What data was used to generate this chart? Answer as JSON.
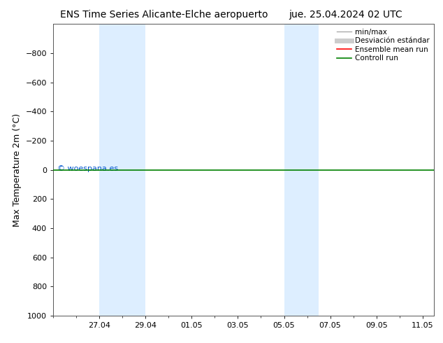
{
  "title_left": "ENS Time Series Alicante-Elche aeropuerto",
  "title_right": "jue. 25.04.2024 02 UTC",
  "ylabel": "Max Temperature 2m (°C)",
  "ylim_bottom": 1000,
  "ylim_top": -1000,
  "yticks": [
    -800,
    -600,
    -400,
    -200,
    0,
    200,
    400,
    600,
    800,
    1000
  ],
  "xlim": [
    0,
    16.5
  ],
  "xtick_labels": [
    "27.04",
    "29.04",
    "01.05",
    "03.05",
    "05.05",
    "07.05",
    "09.05",
    "11.05"
  ],
  "xtick_positions_days": [
    2,
    4,
    6,
    8,
    10,
    12,
    14,
    16
  ],
  "weekend_bands": [
    {
      "start_day": 2,
      "end_day": 4
    },
    {
      "start_day": 10,
      "end_day": 11.5
    }
  ],
  "band_color": "#ddeeff",
  "control_run_y": 0,
  "control_run_color": "#008000",
  "ensemble_mean_color": "#ff0000",
  "watermark": "© woespana.es",
  "watermark_color": "#0055cc",
  "legend_items": [
    {
      "label": "min/max",
      "color": "#aaaaaa",
      "lw": 1.0
    },
    {
      "label": "Desviación estándar",
      "color": "#cccccc",
      "lw": 5
    },
    {
      "label": "Ensemble mean run",
      "color": "#ff0000",
      "lw": 1.2
    },
    {
      "label": "Controll run",
      "color": "#008000",
      "lw": 1.2
    }
  ],
  "background_color": "#ffffff",
  "spine_color": "#555555",
  "title_fontsize": 10,
  "axis_label_fontsize": 9,
  "tick_fontsize": 8,
  "legend_fontsize": 7.5
}
